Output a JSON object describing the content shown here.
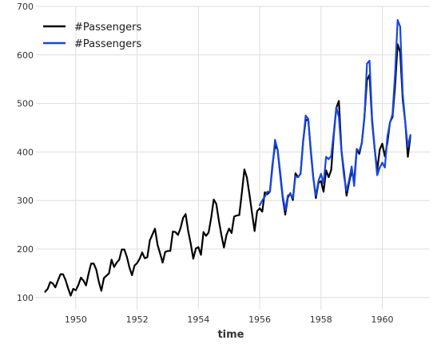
{
  "chart_data": {
    "type": "line",
    "title": "",
    "xlabel": "time",
    "ylabel": "",
    "xlim": [
      1948.7,
      1961.55
    ],
    "ylim": [
      75,
      700
    ],
    "xticks": [
      1950,
      1952,
      1954,
      1956,
      1958,
      1960
    ],
    "yticks": [
      100,
      200,
      300,
      400,
      500,
      600,
      700
    ],
    "grid": true,
    "legend_position": "top-left",
    "series": [
      {
        "name": "#Passengers",
        "color": "#000000",
        "x_start": 1949.0,
        "x_step": 0.0833333,
        "values": [
          112,
          118,
          132,
          129,
          121,
          135,
          148,
          148,
          136,
          119,
          104,
          118,
          115,
          126,
          141,
          135,
          125,
          149,
          170,
          170,
          158,
          133,
          114,
          140,
          145,
          150,
          178,
          163,
          172,
          178,
          199,
          199,
          184,
          162,
          146,
          166,
          171,
          180,
          193,
          181,
          183,
          218,
          230,
          242,
          209,
          191,
          172,
          194,
          196,
          196,
          236,
          235,
          229,
          243,
          264,
          272,
          237,
          211,
          180,
          201,
          204,
          188,
          235,
          227,
          234,
          264,
          302,
          293,
          259,
          229,
          203,
          229,
          242,
          233,
          267,
          269,
          270,
          315,
          364,
          347,
          312,
          274,
          237,
          278,
          284,
          277,
          317,
          313,
          318,
          374,
          413,
          405,
          355,
          306,
          271,
          306,
          315,
          301,
          356,
          348,
          355,
          422,
          465,
          467,
          404,
          347,
          305,
          336,
          340,
          318,
          362,
          348,
          363,
          435,
          491,
          505,
          404,
          359,
          310,
          337,
          360,
          342,
          406,
          396,
          420,
          472,
          548,
          559,
          463,
          407,
          362,
          405,
          417,
          391,
          419,
          461,
          472,
          535,
          622,
          606,
          508,
          461,
          390,
          432
        ]
      },
      {
        "name": "#Passengers",
        "color": "#1646e8",
        "x_start": 1956.0,
        "x_step": 0.0833333,
        "values": [
          290,
          300,
          308,
          318,
          318,
          368,
          425,
          405,
          360,
          310,
          280,
          310,
          314,
          305,
          350,
          348,
          355,
          420,
          475,
          468,
          400,
          345,
          310,
          340,
          355,
          335,
          390,
          385,
          392,
          440,
          492,
          472,
          402,
          350,
          320,
          342,
          370,
          330,
          405,
          402,
          418,
          470,
          582,
          588,
          470,
          408,
          352,
          368,
          378,
          368,
          432,
          460,
          478,
          560,
          672,
          658,
          520,
          460,
          410,
          435
        ]
      }
    ]
  }
}
